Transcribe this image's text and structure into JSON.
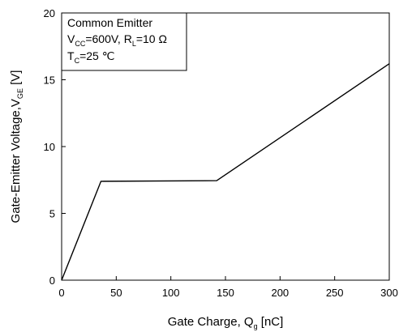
{
  "chart_data": {
    "type": "line",
    "x_label_main": "Gate Charge, Q",
    "x_label_sub": "g",
    "x_label_unit": " [nC]",
    "y_label_main": "Gate-Emitter Voltage,V",
    "y_label_sub": "GE",
    "y_label_unit": " [V]",
    "xlim": [
      0,
      300
    ],
    "ylim": [
      0,
      20
    ],
    "x_ticks": [
      "0",
      "50",
      "100",
      "150",
      "200",
      "250",
      "300"
    ],
    "y_ticks": [
      "0",
      "5",
      "10",
      "15",
      "20"
    ],
    "grid": false,
    "series": [
      {
        "x": [
          0,
          36,
          142,
          300
        ],
        "y": [
          0,
          7.4,
          7.45,
          16.2
        ]
      }
    ],
    "annotation": {
      "line1": "Common Emitter",
      "line2_v": "V",
      "line2_vsub": "CC",
      "line2_mid": "=600V, R",
      "line2_rsub": "L",
      "line2_end": "=10 Ω",
      "line3_t": "T",
      "line3_tsub": "C",
      "line3_end": "=25 ℃"
    },
    "line_color": "#000000"
  }
}
